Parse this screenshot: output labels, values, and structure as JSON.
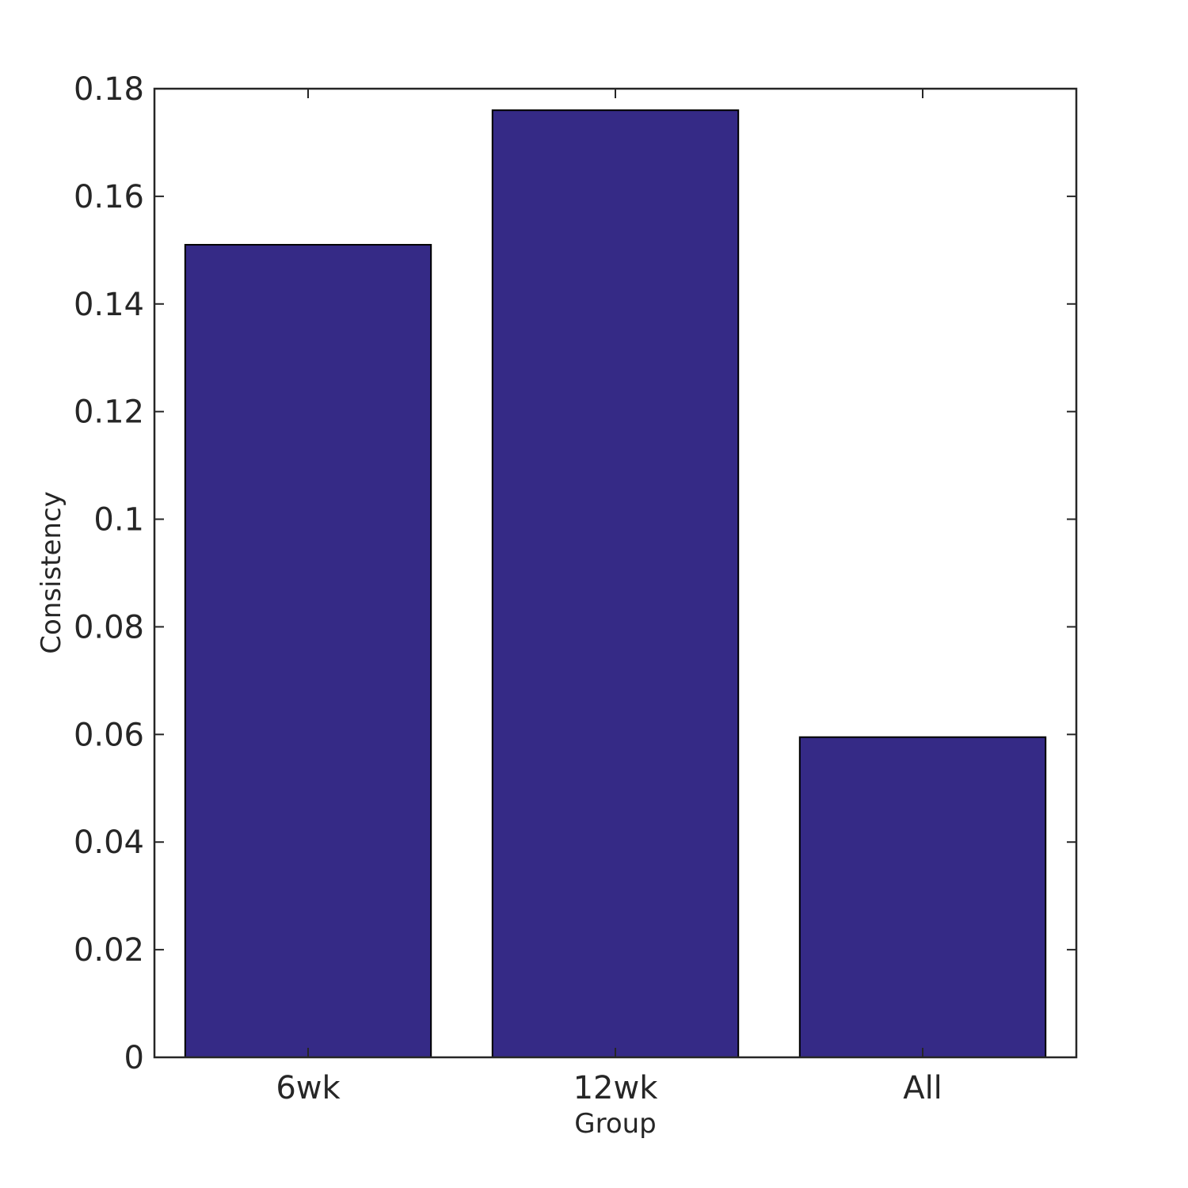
{
  "chart_data": {
    "type": "bar",
    "categories": [
      "6wk",
      "12wk",
      "All"
    ],
    "values": [
      0.151,
      0.176,
      0.0595
    ],
    "xlabel": "Group",
    "ylabel": "Consistency",
    "ylim": [
      0,
      0.18
    ],
    "yticks": [
      0,
      0.02,
      0.04,
      0.06,
      0.08,
      0.1,
      0.12,
      0.14,
      0.16,
      0.18
    ],
    "ytick_labels": [
      "0",
      "0.02",
      "0.04",
      "0.06",
      "0.08",
      "0.1",
      "0.12",
      "0.14",
      "0.16",
      "0.18"
    ],
    "bar_color": "#352a86",
    "grid": false,
    "legend": "none"
  }
}
